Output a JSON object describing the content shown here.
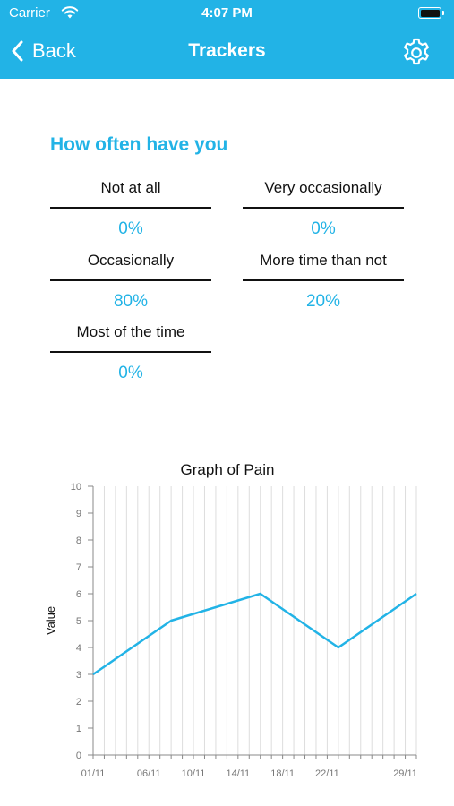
{
  "status_bar": {
    "carrier": "Carrier",
    "time": "4:07 PM"
  },
  "nav": {
    "back_label": "Back",
    "title": "Trackers"
  },
  "section": {
    "title": "How often have you"
  },
  "options": [
    {
      "label": "Not at all",
      "value": "0%"
    },
    {
      "label": "Very occasionally",
      "value": "0%"
    },
    {
      "label": "Occasionally",
      "value": "80%"
    },
    {
      "label": "More time than not",
      "value": "20%"
    },
    {
      "label": "Most of the time",
      "value": "0%"
    }
  ],
  "colors": {
    "accent": "#22b3e6",
    "text": "#111111"
  },
  "chart_data": {
    "type": "line",
    "title": "Graph of Pain",
    "ylabel": "Value",
    "xlabel": "",
    "ylim": [
      0,
      10
    ],
    "yticks": [
      "0",
      "1",
      "2",
      "3",
      "4",
      "5",
      "6",
      "7",
      "8",
      "9",
      "10"
    ],
    "xlim": [
      "2019-11-01",
      "2019-11-30"
    ],
    "xtick_labels": [
      "01/11",
      "06/11",
      "10/11",
      "14/11",
      "18/11",
      "22/11",
      "29/11"
    ],
    "series": [
      {
        "x": [
          "2019-11-01",
          "2019-11-08",
          "2019-11-16",
          "2019-11-23",
          "2019-11-30"
        ],
        "y": [
          3,
          5,
          6,
          4,
          6
        ]
      }
    ],
    "grid": true
  }
}
